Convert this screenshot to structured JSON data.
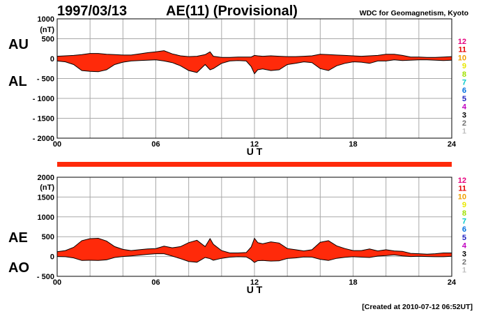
{
  "header": {
    "date": "1997/03/13",
    "title": "AE(11) (Provisional)",
    "source": "WDC for Geomagnetism, Kyoto"
  },
  "footer": {
    "created": "[Created at 2010-07-12 06:52UT]"
  },
  "colors": {
    "fill": "#ff2a0a",
    "line": "#000000",
    "grid": "#a8a8a8",
    "bar": "#ff2a0a"
  },
  "station_count_legend": [
    {
      "label": "12",
      "color": "#e6007e"
    },
    {
      "label": "11",
      "color": "#e60000"
    },
    {
      "label": "10",
      "color": "#f0a000"
    },
    {
      "label": "9",
      "color": "#e8e800"
    },
    {
      "label": "8",
      "color": "#a0e000"
    },
    {
      "label": "7",
      "color": "#00c8c8"
    },
    {
      "label": "6",
      "color": "#0070e0"
    },
    {
      "label": "5",
      "color": "#2020c0"
    },
    {
      "label": "4",
      "color": "#c000c0"
    },
    {
      "label": "3",
      "color": "#000000"
    },
    {
      "label": "2",
      "color": "#707070"
    },
    {
      "label": "1",
      "color": "#c0c0c0"
    }
  ],
  "chart_data": [
    {
      "type": "area",
      "panel": "upper",
      "title": "AE(11) (Provisional)",
      "xlabel": "U T",
      "ylabel": "(nT)",
      "side_labels": [
        "AU",
        "AL"
      ],
      "xlim": [
        0,
        24
      ],
      "ylim": [
        -2000,
        1000
      ],
      "xticks": [
        "00",
        "06",
        "12",
        "18",
        "24"
      ],
      "yticks": [
        "1000",
        "500",
        "0",
        "- 500",
        "- 1000",
        "- 1500",
        "- 2000"
      ],
      "ytick_values": [
        1000,
        500,
        0,
        -500,
        -1000,
        -1500,
        -2000
      ],
      "grid": true,
      "x": [
        0,
        0.5,
        1,
        1.5,
        2,
        2.5,
        3,
        3.5,
        4,
        4.5,
        5,
        5.5,
        6,
        6.5,
        7,
        7.5,
        8,
        8.5,
        9,
        9.3,
        9.5,
        10,
        10.5,
        11,
        11.5,
        11.8,
        12,
        12.2,
        12.5,
        13,
        13.5,
        14,
        14.5,
        15,
        15.5,
        16,
        16.5,
        17,
        17.5,
        18,
        18.5,
        19,
        19.5,
        20,
        20.5,
        21,
        21.5,
        22,
        22.5,
        23,
        23.5,
        24
      ],
      "series": [
        {
          "name": "AU",
          "values": [
            60,
            70,
            80,
            100,
            130,
            130,
            110,
            100,
            90,
            90,
            120,
            150,
            170,
            200,
            120,
            70,
            50,
            60,
            100,
            170,
            60,
            30,
            30,
            40,
            40,
            40,
            80,
            70,
            60,
            70,
            60,
            50,
            50,
            60,
            70,
            110,
            100,
            90,
            80,
            70,
            60,
            70,
            80,
            110,
            110,
            80,
            40,
            40,
            30,
            30,
            40,
            50
          ]
        },
        {
          "name": "AL",
          "values": [
            -60,
            -80,
            -150,
            -300,
            -320,
            -330,
            -280,
            -150,
            -90,
            -60,
            -50,
            -40,
            -30,
            -60,
            -100,
            -180,
            -300,
            -350,
            -150,
            -280,
            -250,
            -120,
            -60,
            -50,
            -60,
            -200,
            -380,
            -280,
            -260,
            -300,
            -280,
            -150,
            -120,
            -80,
            -100,
            -250,
            -300,
            -180,
            -120,
            -80,
            -90,
            -120,
            -60,
            -60,
            -30,
            -50,
            -40,
            -30,
            -30,
            -40,
            -50,
            -40
          ]
        }
      ]
    },
    {
      "type": "area",
      "panel": "lower",
      "xlabel": "U T",
      "ylabel": "(nT)",
      "side_labels": [
        "AE",
        "AO"
      ],
      "xlim": [
        0,
        24
      ],
      "ylim": [
        -500,
        2000
      ],
      "xticks": [
        "00",
        "06",
        "12",
        "18",
        "24"
      ],
      "yticks": [
        "2000",
        "1500",
        "1000",
        "500",
        "0",
        "- 500"
      ],
      "ytick_values": [
        2000,
        1500,
        1000,
        500,
        0,
        -500
      ],
      "grid": true,
      "x": [
        0,
        0.5,
        1,
        1.5,
        2,
        2.5,
        3,
        3.5,
        4,
        4.5,
        5,
        5.5,
        6,
        6.5,
        7,
        7.5,
        8,
        8.5,
        9,
        9.3,
        9.5,
        10,
        10.5,
        11,
        11.5,
        11.8,
        12,
        12.2,
        12.5,
        13,
        13.5,
        14,
        14.5,
        15,
        15.5,
        16,
        16.5,
        17,
        17.5,
        18,
        18.5,
        19,
        19.5,
        20,
        20.5,
        21,
        21.5,
        22,
        22.5,
        23,
        23.5,
        24
      ],
      "series": [
        {
          "name": "AE",
          "values": [
            120,
            150,
            230,
            400,
            450,
            460,
            390,
            250,
            180,
            150,
            170,
            190,
            200,
            260,
            220,
            250,
            350,
            410,
            250,
            450,
            310,
            150,
            90,
            90,
            100,
            240,
            460,
            350,
            320,
            370,
            340,
            200,
            170,
            140,
            170,
            360,
            400,
            270,
            200,
            150,
            150,
            190,
            140,
            170,
            140,
            130,
            80,
            70,
            60,
            70,
            90,
            90
          ]
        },
        {
          "name": "AO",
          "values": [
            0,
            -5,
            -35,
            -100,
            -95,
            -100,
            -85,
            -25,
            0,
            15,
            35,
            55,
            70,
            70,
            10,
            -55,
            -125,
            -145,
            -25,
            -55,
            -95,
            -45,
            -15,
            -5,
            -10,
            -80,
            -150,
            -105,
            -100,
            -115,
            -110,
            -50,
            -35,
            -10,
            -15,
            -70,
            -100,
            -45,
            -20,
            -5,
            -15,
            -25,
            10,
            25,
            40,
            15,
            0,
            5,
            0,
            -5,
            -5,
            5
          ]
        }
      ]
    }
  ]
}
